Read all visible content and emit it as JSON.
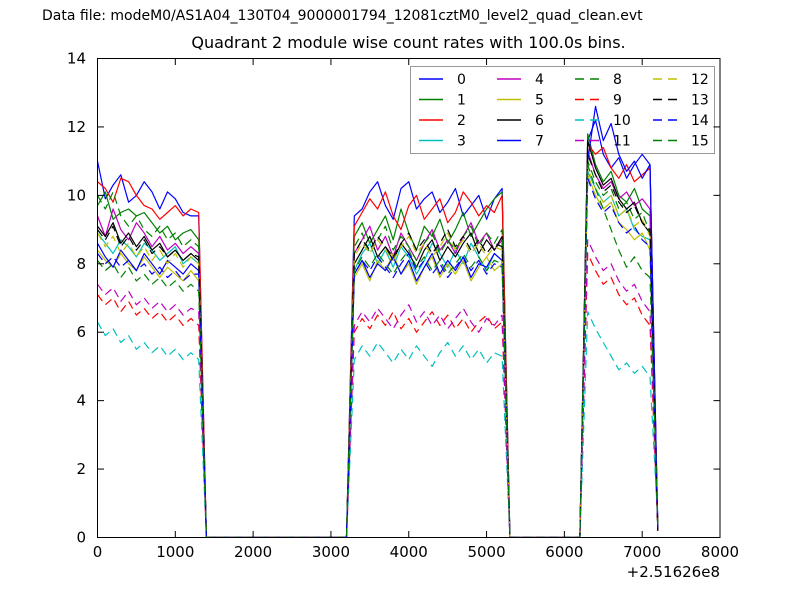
{
  "header": {
    "datafile_label": "Data file: modeM0/AS1A04_130T04_9000001794_12081cztM0_level2_quad_clean.evt"
  },
  "chart_data": {
    "type": "line",
    "title": "Quadrant 2 module wise count rates with 100.0s bins.",
    "xlabel": "",
    "ylabel": "",
    "xlim": [
      0,
      8000
    ],
    "ylim": [
      0,
      14
    ],
    "x_ticks": [
      0,
      1000,
      2000,
      3000,
      4000,
      5000,
      6000,
      7000,
      8000
    ],
    "y_ticks": [
      0,
      2,
      4,
      6,
      8,
      10,
      12,
      14
    ],
    "x_offset_label": "+2.51626e8",
    "bin_seconds": 100.0,
    "grid": false,
    "legend": {
      "position": "upper right",
      "columns": 4,
      "frame_color": "#999999",
      "background": "#ffffff"
    },
    "x_step": 100,
    "gap_value": 0,
    "segments": [
      {
        "x_start": 0,
        "n": 14
      },
      {
        "x_start": 3300,
        "n": 20
      },
      {
        "x_start": 6300,
        "n": 10
      }
    ],
    "series": [
      {
        "name": "0",
        "color": "#0000ff",
        "dashed": false,
        "seg1": [
          11.0,
          9.9,
          10.3,
          10.6,
          9.8,
          10.0,
          10.4,
          10.1,
          9.6,
          10.1,
          9.9,
          9.5,
          9.4,
          9.4
        ],
        "seg2": [
          9.4,
          9.6,
          10.1,
          10.4,
          9.7,
          9.3,
          10.2,
          10.4,
          9.6,
          9.9,
          10.1,
          9.5,
          9.8,
          10.2,
          9.4,
          9.7,
          10.0,
          9.3,
          9.9,
          10.2
        ],
        "seg3": [
          11.6,
          12.2,
          11.2,
          10.8,
          11.1,
          10.5,
          10.9,
          11.2,
          10.9,
          0.3
        ]
      },
      {
        "name": "1",
        "color": "#008000",
        "dashed": false,
        "seg1": [
          9.7,
          10.1,
          9.3,
          9.5,
          9.6,
          9.4,
          9.5,
          9.2,
          8.9,
          9.1,
          8.7,
          8.9,
          9.0,
          8.7
        ],
        "seg2": [
          8.8,
          9.2,
          8.6,
          9.0,
          9.4,
          8.7,
          9.6,
          8.9,
          8.4,
          9.1,
          8.8,
          9.3,
          8.6,
          9.0,
          9.5,
          8.8,
          9.2,
          9.6,
          9.9,
          10.1
        ],
        "seg3": [
          11.8,
          10.9,
          10.4,
          10.7,
          10.0,
          9.8,
          10.2,
          9.6,
          9.4,
          0.2
        ]
      },
      {
        "name": "2",
        "color": "#ff0000",
        "dashed": false,
        "seg1": [
          10.4,
          10.2,
          9.8,
          10.5,
          10.4,
          10.0,
          9.7,
          9.6,
          9.3,
          9.5,
          9.7,
          9.4,
          9.6,
          9.5
        ],
        "seg2": [
          9.1,
          9.5,
          9.9,
          9.6,
          10.1,
          9.4,
          9.0,
          9.7,
          10.0,
          9.3,
          9.6,
          9.9,
          9.2,
          9.5,
          10.1,
          9.8,
          9.4,
          9.7,
          9.5,
          10.0
        ],
        "seg3": [
          11.5,
          11.2,
          11.4,
          10.8,
          10.5,
          10.9,
          10.4,
          10.6,
          10.8,
          0.3
        ]
      },
      {
        "name": "3",
        "color": "#00bfbf",
        "dashed": false,
        "seg1": [
          8.9,
          8.6,
          8.3,
          8.7,
          8.5,
          8.2,
          8.6,
          8.4,
          8.1,
          8.3,
          8.5,
          8.0,
          8.2,
          8.0
        ],
        "seg2": [
          7.8,
          8.3,
          8.6,
          8.0,
          8.4,
          7.9,
          8.5,
          8.2,
          7.7,
          8.1,
          8.6,
          8.3,
          7.9,
          8.4,
          8.0,
          8.6,
          8.2,
          7.8,
          8.3,
          8.1
        ],
        "seg3": [
          10.7,
          10.2,
          9.8,
          10.0,
          9.4,
          9.6,
          9.0,
          8.8,
          8.7,
          0.4
        ]
      },
      {
        "name": "4",
        "color": "#bf00bf",
        "dashed": false,
        "seg1": [
          9.4,
          8.8,
          9.6,
          9.0,
          8.7,
          9.2,
          8.9,
          8.5,
          8.8,
          8.4,
          8.6,
          8.3,
          8.5,
          8.3
        ],
        "seg2": [
          8.3,
          8.7,
          9.1,
          8.4,
          8.8,
          8.2,
          8.9,
          8.5,
          8.1,
          8.6,
          9.0,
          8.4,
          8.7,
          8.3,
          8.8,
          9.2,
          8.6,
          8.9,
          8.4,
          8.7
        ],
        "seg3": [
          11.3,
          10.6,
          10.2,
          10.4,
          9.9,
          10.1,
          9.7,
          9.9,
          9.6,
          0.3
        ]
      },
      {
        "name": "5",
        "color": "#bfbf00",
        "dashed": false,
        "seg1": [
          8.4,
          8.1,
          7.9,
          8.3,
          8.0,
          7.8,
          8.2,
          7.9,
          7.6,
          7.9,
          7.7,
          7.5,
          7.8,
          7.5
        ],
        "seg2": [
          7.6,
          8.0,
          7.5,
          8.1,
          7.8,
          8.3,
          7.7,
          8.0,
          7.4,
          7.9,
          8.2,
          7.6,
          8.0,
          7.7,
          8.1,
          7.5,
          7.9,
          8.2,
          7.8,
          8.0
        ],
        "seg3": [
          10.6,
          10.0,
          9.6,
          9.8,
          9.2,
          9.0,
          8.7,
          8.9,
          8.4,
          0.3
        ]
      },
      {
        "name": "6",
        "color": "#000000",
        "dashed": false,
        "seg1": [
          9.1,
          8.8,
          9.2,
          8.6,
          8.9,
          8.5,
          8.8,
          8.4,
          8.6,
          8.2,
          8.4,
          8.1,
          8.3,
          8.1
        ],
        "seg2": [
          8.0,
          8.4,
          8.8,
          8.2,
          8.5,
          8.1,
          8.6,
          8.3,
          7.9,
          8.4,
          8.7,
          8.1,
          8.5,
          8.2,
          8.6,
          8.9,
          8.3,
          8.7,
          8.4,
          8.8
        ],
        "seg3": [
          11.6,
          10.8,
          10.3,
          10.5,
          9.9,
          9.6,
          9.8,
          9.2,
          8.9,
          0.2
        ]
      },
      {
        "name": "7",
        "color": "#0000ff",
        "dashed": false,
        "seg1": [
          8.6,
          8.2,
          7.9,
          8.4,
          8.1,
          7.8,
          8.3,
          8.0,
          7.7,
          8.1,
          7.9,
          7.7,
          8.0,
          7.8
        ],
        "seg2": [
          7.7,
          8.1,
          7.6,
          8.0,
          7.8,
          8.2,
          7.7,
          8.1,
          7.5,
          7.9,
          8.3,
          7.7,
          8.1,
          7.8,
          8.2,
          7.6,
          8.0,
          7.9,
          8.3,
          8.1
        ],
        "seg3": [
          11.0,
          12.6,
          11.6,
          12.1,
          11.2,
          10.7,
          11.0,
          10.5,
          10.9,
          0.3
        ]
      },
      {
        "name": "8",
        "color": "#008000",
        "dashed": true,
        "seg1": [
          10.0,
          9.6,
          10.1,
          9.4,
          9.1,
          9.4,
          9.0,
          8.8,
          9.1,
          8.7,
          8.9,
          8.5,
          8.7,
          8.5
        ],
        "seg2": [
          8.5,
          8.9,
          8.3,
          8.7,
          9.1,
          8.4,
          8.8,
          8.5,
          8.1,
          8.6,
          8.9,
          8.3,
          8.7,
          8.4,
          8.8,
          9.1,
          8.5,
          8.9,
          8.6,
          9.0
        ],
        "seg3": [
          11.0,
          10.4,
          10.0,
          10.2,
          9.6,
          9.8,
          9.3,
          9.5,
          8.9,
          0.3
        ]
      },
      {
        "name": "9",
        "color": "#ff0000",
        "dashed": true,
        "seg1": [
          7.1,
          6.8,
          7.0,
          6.6,
          6.9,
          6.5,
          6.7,
          6.4,
          6.6,
          6.3,
          6.5,
          6.2,
          6.4,
          6.2
        ],
        "seg2": [
          6.0,
          6.4,
          6.1,
          6.5,
          6.2,
          6.6,
          6.1,
          6.4,
          6.0,
          6.3,
          6.6,
          6.2,
          6.5,
          6.1,
          6.4,
          6.0,
          6.3,
          6.5,
          6.1,
          6.3
        ],
        "seg3": [
          8.3,
          7.8,
          7.4,
          7.6,
          7.1,
          6.8,
          7.0,
          6.5,
          6.2,
          0.2
        ]
      },
      {
        "name": "10",
        "color": "#00bfbf",
        "dashed": true,
        "seg1": [
          6.3,
          5.9,
          6.1,
          5.7,
          5.9,
          5.5,
          5.7,
          5.4,
          5.6,
          5.3,
          5.5,
          5.2,
          5.4,
          5.2
        ],
        "seg2": [
          5.2,
          5.6,
          5.3,
          5.7,
          5.4,
          5.1,
          5.5,
          5.2,
          5.6,
          5.3,
          5.0,
          5.4,
          5.7,
          5.3,
          5.6,
          5.2,
          5.5,
          5.1,
          5.4,
          5.3
        ],
        "seg3": [
          6.6,
          6.1,
          5.7,
          5.3,
          4.9,
          5.1,
          4.8,
          5.0,
          4.7,
          0.5
        ]
      },
      {
        "name": "11",
        "color": "#bf00bf",
        "dashed": true,
        "seg1": [
          7.4,
          7.1,
          7.3,
          6.9,
          7.2,
          6.8,
          7.0,
          6.7,
          6.9,
          6.6,
          6.8,
          6.5,
          6.7,
          6.6
        ],
        "seg2": [
          6.2,
          6.6,
          6.3,
          6.7,
          6.4,
          6.1,
          6.5,
          6.8,
          6.3,
          6.6,
          6.2,
          6.5,
          6.1,
          6.4,
          6.7,
          6.3,
          6.0,
          6.4,
          6.2,
          6.5
        ],
        "seg3": [
          8.7,
          8.2,
          7.8,
          8.0,
          7.5,
          7.2,
          7.4,
          6.9,
          6.6,
          0.3
        ]
      },
      {
        "name": "12",
        "color": "#bfbf00",
        "dashed": true,
        "seg1": [
          8.9,
          8.5,
          8.8,
          8.3,
          8.6,
          8.2,
          8.5,
          8.1,
          8.4,
          8.0,
          8.3,
          7.9,
          8.2,
          8.0
        ],
        "seg2": [
          8.2,
          8.6,
          8.3,
          8.7,
          8.4,
          8.1,
          8.5,
          8.8,
          8.3,
          8.6,
          8.2,
          8.5,
          8.9,
          8.4,
          8.7,
          8.3,
          8.6,
          8.2,
          8.5,
          8.4
        ],
        "seg3": [
          10.8,
          10.2,
          9.8,
          10.0,
          9.4,
          9.6,
          9.1,
          9.3,
          8.8,
          0.3
        ]
      },
      {
        "name": "13",
        "color": "#000000",
        "dashed": true,
        "seg1": [
          9.0,
          8.7,
          9.1,
          8.5,
          8.8,
          8.4,
          8.7,
          8.3,
          8.5,
          8.2,
          8.4,
          8.1,
          8.3,
          8.2
        ],
        "seg2": [
          8.3,
          8.7,
          8.4,
          8.8,
          8.5,
          8.2,
          8.6,
          8.9,
          8.4,
          8.7,
          8.3,
          8.6,
          9.0,
          8.5,
          8.8,
          8.4,
          8.7,
          8.3,
          8.6,
          8.5
        ],
        "seg3": [
          11.2,
          10.6,
          10.1,
          10.3,
          9.8,
          9.5,
          9.7,
          9.2,
          9.0,
          0.2
        ]
      },
      {
        "name": "14",
        "color": "#0000ff",
        "dashed": true,
        "seg1": [
          8.3,
          8.0,
          8.2,
          7.9,
          8.1,
          7.8,
          8.0,
          7.7,
          7.9,
          7.6,
          7.8,
          7.5,
          7.7,
          7.7
        ],
        "seg2": [
          7.7,
          8.1,
          7.8,
          8.2,
          7.9,
          7.6,
          8.0,
          8.3,
          7.8,
          8.1,
          7.7,
          8.0,
          7.6,
          7.9,
          8.2,
          7.8,
          8.1,
          7.7,
          8.0,
          7.9
        ],
        "seg3": [
          10.5,
          9.9,
          9.5,
          9.7,
          9.2,
          8.9,
          9.1,
          8.7,
          8.5,
          0.3
        ]
      },
      {
        "name": "15",
        "color": "#008000",
        "dashed": true,
        "seg1": [
          8.1,
          7.8,
          8.0,
          7.6,
          7.9,
          7.5,
          7.7,
          7.4,
          7.6,
          7.3,
          7.5,
          7.2,
          7.4,
          7.2
        ],
        "seg2": [
          7.8,
          8.2,
          7.9,
          8.3,
          8.0,
          7.7,
          8.1,
          8.4,
          7.9,
          8.2,
          7.8,
          8.1,
          7.7,
          8.0,
          8.3,
          7.9,
          8.2,
          7.8,
          8.1,
          8.0
        ],
        "seg3": [
          10.9,
          10.2,
          9.6,
          9.0,
          8.4,
          7.9,
          8.2,
          7.8,
          7.6,
          0.4
        ]
      }
    ]
  }
}
